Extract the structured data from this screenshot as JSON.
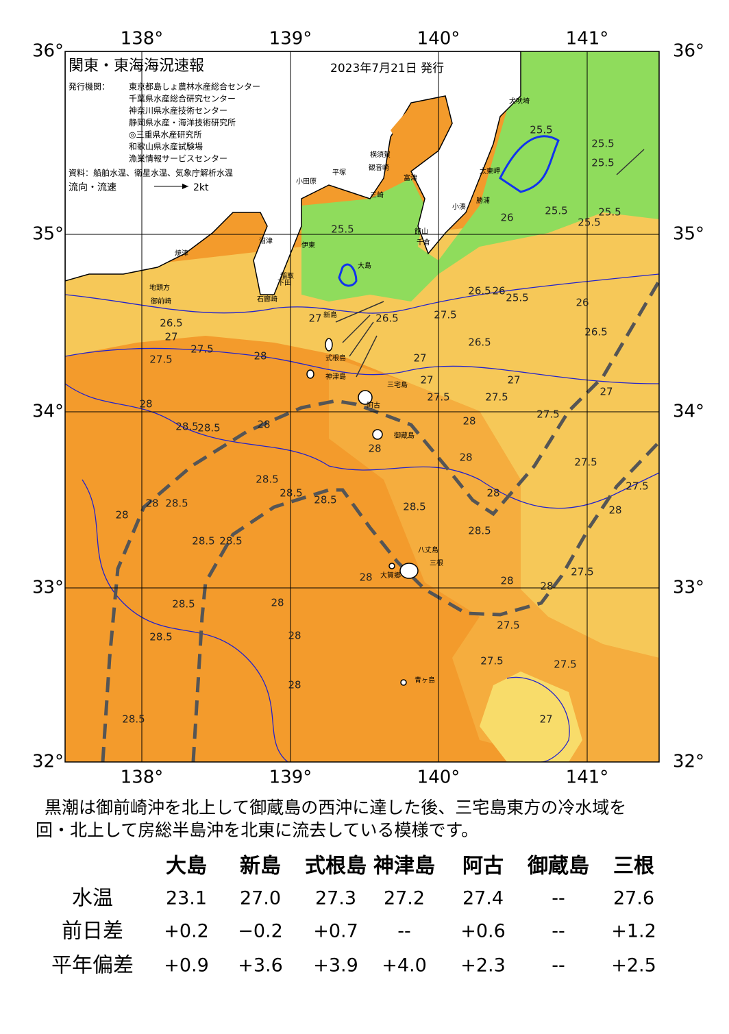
{
  "map": {
    "title": "関東・東海海況速報",
    "date": "2023年7月21日 発行",
    "issuers_label": "発行機関：",
    "issuers": [
      "東京都島しょ農林水産総合センター",
      "千葉県水産総合研究センター",
      "神奈川県水産技術センター",
      "静岡県水産・海洋技術研究所",
      "◎三重県水産研究所",
      "和歌山県水産試験場",
      "漁業情報サービスセンター"
    ],
    "source": "資料：船舶水温、衛星水温、気象庁解析水温",
    "flow_label": "流向・流速",
    "flow_scale": "2kt",
    "lon_labels": [
      "138°",
      "139°",
      "140°",
      "141°"
    ],
    "lat_labels": [
      "36°",
      "35°",
      "34°",
      "33°",
      "32°"
    ],
    "place_names": [
      "犬吠埼",
      "太東岬",
      "勝浦",
      "小湊",
      "館山",
      "千倉",
      "富津",
      "横須賀",
      "観音崎",
      "三崎",
      "平塚",
      "小田原",
      "沼津",
      "伊東",
      "焼津",
      "地頭方",
      "御前崎",
      "稲取",
      "下田",
      "石廊崎",
      "大島",
      "新島",
      "式根島",
      "神津島",
      "三宅島",
      "阿古",
      "御蔵島",
      "八丈島",
      "三根",
      "大賀郷",
      "青ヶ島"
    ],
    "contour_labels": [
      "25.5",
      "25.5",
      "25.5",
      "25.5",
      "25.5",
      "26",
      "25.5",
      "25.5",
      "26.5",
      "26",
      "25.5",
      "26",
      "27",
      "26.5",
      "27.5",
      "26.5",
      "26.5",
      "26.5",
      "27",
      "27.5",
      "27.5",
      "28",
      "27",
      "27",
      "27.5",
      "27",
      "27.5",
      "27.5",
      "27",
      "28",
      "28.5",
      "28.5",
      "28",
      "28",
      "28",
      "28",
      "27.5",
      "28.5",
      "28.5",
      "28.5",
      "28",
      "28.5",
      "28",
      "28",
      "28.5",
      "28.5",
      "28.5",
      "28.5",
      "27.5",
      "28",
      "28",
      "28",
      "28",
      "27.5",
      "28.5",
      "28",
      "27.5",
      "28.5",
      "28",
      "28",
      "27.5",
      "27.5",
      "27",
      "28.5"
    ]
  },
  "description": [
    "　黒潮は御前崎沖を北上して御蔵島の西沖に達した後、三宅島東方の冷水域を",
    "回・北上して房総半島沖を北東に流去している模様です。"
  ],
  "table": {
    "header": [
      "大島",
      "新島",
      "式根島",
      "神津島",
      "阿古",
      "御蔵島",
      "三根"
    ],
    "rows": [
      [
        "水温",
        "23.1",
        "27.0",
        "27.3",
        "27.2",
        "27.4",
        "--",
        "27.6"
      ],
      [
        "前日差",
        "+0.2",
        "−0.2",
        "+0.7",
        "--",
        "+0.6",
        "--",
        "+1.2"
      ],
      [
        "平年偏差",
        "+0.9",
        "+3.6",
        "+3.9",
        "+4.0",
        "+2.3",
        "--",
        "+2.5"
      ]
    ]
  }
}
